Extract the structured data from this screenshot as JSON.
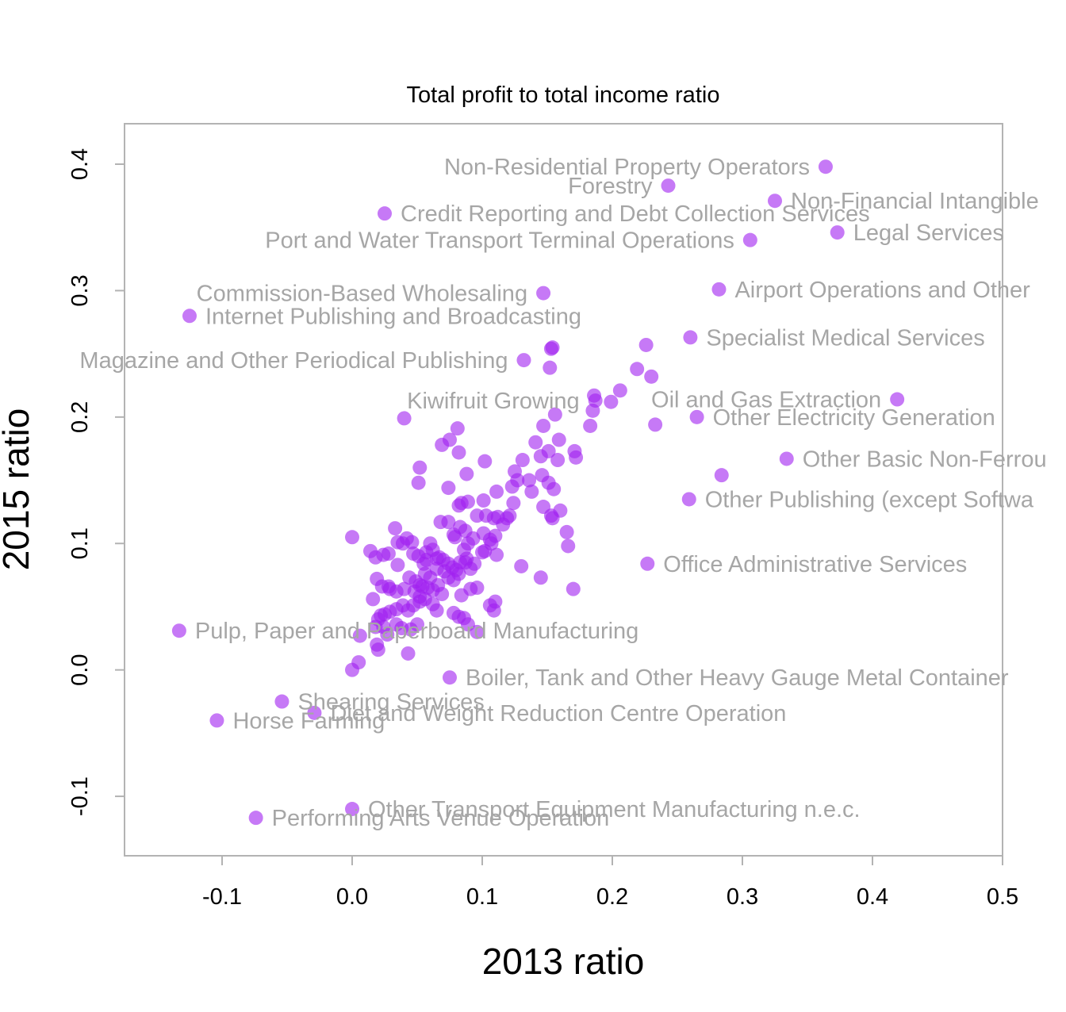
{
  "chart_data": {
    "type": "scatter",
    "title": "Total profit to total income ratio",
    "xlabel": "2013 ratio",
    "ylabel": "2015 ratio",
    "xlim": [
      -0.175,
      0.5
    ],
    "ylim": [
      -0.147,
      0.432
    ],
    "xticks": [
      "-0.1",
      "0.0",
      "0.1",
      "0.2",
      "0.3",
      "0.4",
      "0.5"
    ],
    "yticks": [
      "-0.1",
      "0.0",
      "0.1",
      "0.2",
      "0.3",
      "0.4"
    ],
    "x_tick_values": [
      -0.1,
      0.0,
      0.1,
      0.2,
      0.3,
      0.4,
      0.5
    ],
    "y_tick_values": [
      -0.1,
      0.0,
      0.1,
      0.2,
      0.3,
      0.4
    ],
    "grid": false,
    "point_color": "#a020f0",
    "label_color": "#a6a6a6",
    "labeled_points": [
      {
        "label": "Non-Residential Property Operators",
        "x": 0.364,
        "y": 0.398,
        "side": "left"
      },
      {
        "label": "Forestry",
        "x": 0.243,
        "y": 0.383,
        "side": "left"
      },
      {
        "label": "Non-Financial Intangible",
        "x": 0.325,
        "y": 0.371,
        "side": "right"
      },
      {
        "label": "Credit Reporting and Debt Collection Services",
        "x": 0.025,
        "y": 0.361,
        "side": "right"
      },
      {
        "label": "Legal Services",
        "x": 0.373,
        "y": 0.346,
        "side": "right"
      },
      {
        "label": "Port and Water Transport Terminal Operations",
        "x": 0.306,
        "y": 0.34,
        "side": "left"
      },
      {
        "label": "Airport Operations and Other",
        "x": 0.282,
        "y": 0.301,
        "side": "right"
      },
      {
        "label": "Commission-Based Wholesaling",
        "x": 0.147,
        "y": 0.298,
        "side": "left"
      },
      {
        "label": "Internet Publishing and Broadcasting",
        "x": -0.125,
        "y": 0.28,
        "side": "right"
      },
      {
        "label": "Specialist Medical Services",
        "x": 0.26,
        "y": 0.263,
        "side": "right"
      },
      {
        "label": "Magazine and Other Periodical Publishing",
        "x": 0.132,
        "y": 0.245,
        "side": "left"
      },
      {
        "label": "Kiwifruit Growing",
        "x": 0.187,
        "y": 0.213,
        "side": "left"
      },
      {
        "label": "Oil and Gas Extraction",
        "x": 0.419,
        "y": 0.214,
        "side": "left"
      },
      {
        "label": "Other Electricity Generation",
        "x": 0.265,
        "y": 0.2,
        "side": "right"
      },
      {
        "label": "Other Basic Non-Ferrou",
        "x": 0.334,
        "y": 0.167,
        "side": "right"
      },
      {
        "label": "Other Publishing (except Softwa",
        "x": 0.259,
        "y": 0.135,
        "side": "right"
      },
      {
        "label": "Office Administrative Services",
        "x": 0.227,
        "y": 0.084,
        "side": "right"
      },
      {
        "label": "Pulp, Paper and Paperboard Manufacturing",
        "x": -0.133,
        "y": 0.031,
        "side": "right"
      },
      {
        "label": "Boiler, Tank and Other Heavy Gauge Metal Container",
        "x": 0.075,
        "y": -0.006,
        "side": "right"
      },
      {
        "label": "Shearing Services",
        "x": -0.054,
        "y": -0.025,
        "side": "right"
      },
      {
        "label": "Diet and Weight Reduction Centre Operation",
        "x": -0.029,
        "y": -0.034,
        "side": "right"
      },
      {
        "label": "Horse Farming",
        "x": -0.104,
        "y": -0.04,
        "side": "right"
      },
      {
        "label": "Other Transport Equipment Manufacturing n.e.c.",
        "x": 0.0,
        "y": -0.11,
        "side": "right"
      },
      {
        "label": "Performing Arts Venue Operation",
        "x": -0.074,
        "y": -0.117,
        "side": "right"
      }
    ],
    "unlabeled_points": [
      [
        0.153,
        0.254
      ],
      [
        0.154,
        0.255
      ],
      [
        0.152,
        0.239
      ],
      [
        0.226,
        0.257
      ],
      [
        0.219,
        0.238
      ],
      [
        0.23,
        0.232
      ],
      [
        0.206,
        0.221
      ],
      [
        0.199,
        0.212
      ],
      [
        0.186,
        0.217
      ],
      [
        0.185,
        0.205
      ],
      [
        0.183,
        0.193
      ],
      [
        0.233,
        0.194
      ],
      [
        0.284,
        0.154
      ],
      [
        0.04,
        0.199
      ],
      [
        0.156,
        0.202
      ],
      [
        0.147,
        0.193
      ],
      [
        0.159,
        0.182
      ],
      [
        0.171,
        0.173
      ],
      [
        0.172,
        0.168
      ],
      [
        0.151,
        0.173
      ],
      [
        0.141,
        0.18
      ],
      [
        0.145,
        0.169
      ],
      [
        0.131,
        0.166
      ],
      [
        0.158,
        0.166
      ],
      [
        0.102,
        0.165
      ],
      [
        0.069,
        0.178
      ],
      [
        0.075,
        0.182
      ],
      [
        0.081,
        0.191
      ],
      [
        0.082,
        0.172
      ],
      [
        0.088,
        0.155
      ],
      [
        0.125,
        0.157
      ],
      [
        0.127,
        0.15
      ],
      [
        0.146,
        0.154
      ],
      [
        0.151,
        0.148
      ],
      [
        0.136,
        0.15
      ],
      [
        0.138,
        0.141
      ],
      [
        0.155,
        0.143
      ],
      [
        0.123,
        0.145
      ],
      [
        0.111,
        0.141
      ],
      [
        0.074,
        0.144
      ],
      [
        0.052,
        0.16
      ],
      [
        0.051,
        0.148
      ],
      [
        0.101,
        0.134
      ],
      [
        0.089,
        0.133
      ],
      [
        0.082,
        0.13
      ],
      [
        0.084,
        0.132
      ],
      [
        0.124,
        0.132
      ],
      [
        0.147,
        0.129
      ],
      [
        0.16,
        0.126
      ],
      [
        0.153,
        0.122
      ],
      [
        0.154,
        0.12
      ],
      [
        0.096,
        0.122
      ],
      [
        0.103,
        0.122
      ],
      [
        0.109,
        0.12
      ],
      [
        0.112,
        0.121
      ],
      [
        0.119,
        0.12
      ],
      [
        0.121,
        0.122
      ],
      [
        0.116,
        0.115
      ],
      [
        0.083,
        0.113
      ],
      [
        0.087,
        0.11
      ],
      [
        0.068,
        0.117
      ],
      [
        0.074,
        0.117
      ],
      [
        0.078,
        0.107
      ],
      [
        0.079,
        0.105
      ],
      [
        0.11,
        0.106
      ],
      [
        0.107,
        0.1
      ],
      [
        0.165,
        0.109
      ],
      [
        0.166,
        0.098
      ],
      [
        0.102,
        0.094
      ],
      [
        0.1,
        0.093
      ],
      [
        0.089,
        0.1
      ],
      [
        0.093,
        0.104
      ],
      [
        0.086,
        0.095
      ],
      [
        0.088,
        0.088
      ],
      [
        0.111,
        0.091
      ],
      [
        0.13,
        0.082
      ],
      [
        0.145,
        0.073
      ],
      [
        0.17,
        0.064
      ],
      [
        0.0,
        0.105
      ],
      [
        0.033,
        0.112
      ],
      [
        0.035,
        0.101
      ],
      [
        0.039,
        0.1
      ],
      [
        0.042,
        0.104
      ],
      [
        0.046,
        0.101
      ],
      [
        0.06,
        0.1
      ],
      [
        0.062,
        0.095
      ],
      [
        0.065,
        0.088
      ],
      [
        0.067,
        0.089
      ],
      [
        0.07,
        0.087
      ],
      [
        0.074,
        0.084
      ],
      [
        0.077,
        0.081
      ],
      [
        0.08,
        0.079
      ],
      [
        0.083,
        0.085
      ],
      [
        0.087,
        0.085
      ],
      [
        0.091,
        0.08
      ],
      [
        0.094,
        0.084
      ],
      [
        0.057,
        0.093
      ],
      [
        0.057,
        0.087
      ],
      [
        0.055,
        0.084
      ],
      [
        0.051,
        0.09
      ],
      [
        0.047,
        0.092
      ],
      [
        0.014,
        0.094
      ],
      [
        0.018,
        0.089
      ],
      [
        0.024,
        0.091
      ],
      [
        0.028,
        0.092
      ],
      [
        0.035,
        0.083
      ],
      [
        0.056,
        0.076
      ],
      [
        0.06,
        0.073
      ],
      [
        0.065,
        0.08
      ],
      [
        0.071,
        0.078
      ],
      [
        0.074,
        0.073
      ],
      [
        0.078,
        0.071
      ],
      [
        0.082,
        0.076
      ],
      [
        0.096,
        0.065
      ],
      [
        0.091,
        0.064
      ],
      [
        0.044,
        0.073
      ],
      [
        0.049,
        0.07
      ],
      [
        0.052,
        0.067
      ],
      [
        0.054,
        0.066
      ],
      [
        0.058,
        0.065
      ],
      [
        0.062,
        0.063
      ],
      [
        0.066,
        0.067
      ],
      [
        0.069,
        0.06
      ],
      [
        0.048,
        0.062
      ],
      [
        0.052,
        0.058
      ],
      [
        0.056,
        0.056
      ],
      [
        0.04,
        0.064
      ],
      [
        0.019,
        0.072
      ],
      [
        0.023,
        0.066
      ],
      [
        0.028,
        0.066
      ],
      [
        0.034,
        0.062
      ],
      [
        0.039,
        0.051
      ],
      [
        0.043,
        0.047
      ],
      [
        0.047,
        0.051
      ],
      [
        0.052,
        0.054
      ],
      [
        0.062,
        0.052
      ],
      [
        0.065,
        0.047
      ],
      [
        0.016,
        0.056
      ],
      [
        0.029,
        0.064
      ],
      [
        0.034,
        0.048
      ],
      [
        0.029,
        0.046
      ],
      [
        0.025,
        0.044
      ],
      [
        0.022,
        0.043
      ],
      [
        0.02,
        0.04
      ],
      [
        0.018,
        0.034
      ],
      [
        0.024,
        0.034
      ],
      [
        0.027,
        0.028
      ],
      [
        0.034,
        0.036
      ],
      [
        0.038,
        0.033
      ],
      [
        0.045,
        0.032
      ],
      [
        0.05,
        0.036
      ],
      [
        0.078,
        0.045
      ],
      [
        0.082,
        0.042
      ],
      [
        0.086,
        0.041
      ],
      [
        0.084,
        0.059
      ],
      [
        0.106,
        0.051
      ],
      [
        0.11,
        0.054
      ],
      [
        0.109,
        0.047
      ],
      [
        0.089,
        0.036
      ],
      [
        0.096,
        0.03
      ],
      [
        0.006,
        0.027
      ],
      [
        0.019,
        0.02
      ],
      [
        0.02,
        0.016
      ],
      [
        0.043,
        0.013
      ],
      [
        0.005,
        0.006
      ],
      [
        0.0,
        0.0
      ],
      [
        0.101,
        0.108
      ],
      [
        0.106,
        0.103
      ]
    ]
  }
}
